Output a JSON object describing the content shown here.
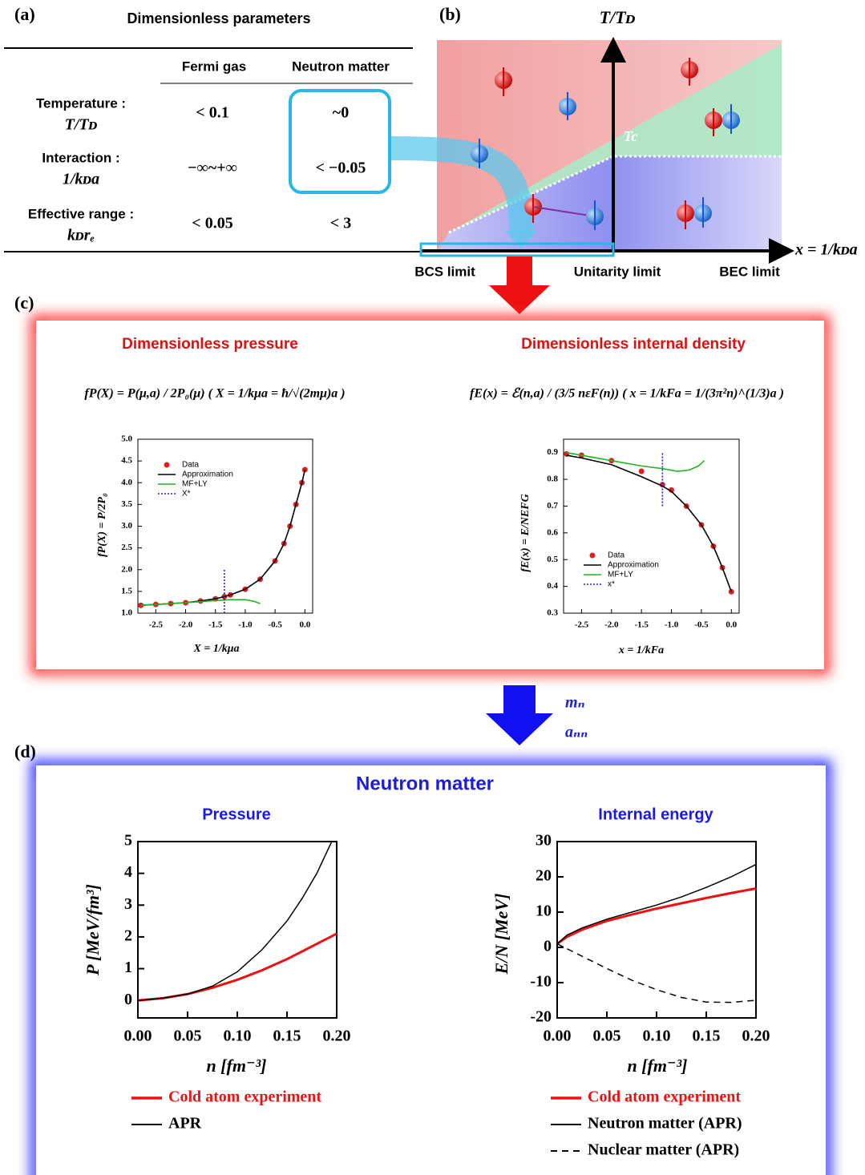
{
  "panel_labels": [
    "(a)",
    "(b)",
    "(c)",
    "(d)"
  ],
  "table": {
    "title": "Dimensionless parameters",
    "columns": [
      "Fermi gas",
      "Neutron matter"
    ],
    "rows": [
      {
        "label": "Temperature :",
        "symbol": "T/Tᴅ",
        "cells": [
          "< 0.1",
          "~0"
        ]
      },
      {
        "label": "Interaction :",
        "symbol": "1/kᴅa",
        "cells": [
          "−∞~+∞",
          "< −0.05"
        ]
      },
      {
        "label": "Effective range :",
        "symbol": "kᴅrₑ",
        "cells": [
          "< 0.05",
          "< 3"
        ]
      }
    ]
  },
  "diagram": {
    "y_axis": "T/Tᴅ",
    "x_axis": "x = 1/kᴅa",
    "tc_label": "Tc",
    "limits": [
      "BCS limit",
      "Unitarity limit",
      "BEC limit"
    ]
  },
  "arrow_labels": [
    "mₙ",
    "aₙₙ"
  ],
  "panel_d_title": "Neutron matter",
  "chart_data": [
    {
      "type": "line",
      "title": "Dimensionless pressure",
      "formula": "fP(X) = P(μ,a) / 2P₀(μ)    ( X = 1/kμa = ħ/√(2mμ)a )",
      "xlabel": "X = 1/kμa",
      "ylabel": "fP(X) = P/2P₀",
      "xlim": [
        -2.8,
        0.13
      ],
      "ylim": [
        1,
        5
      ],
      "xticks": [
        -2.5,
        {
          "value": -2,
          "label": "-2.0"
        },
        -1.5,
        {
          "value": -1,
          "label": "-1.0"
        },
        -0.5,
        {
          "value": 0,
          "label": "0.0"
        }
      ],
      "yticks": [
        {
          "value": 1,
          "label": "1.0"
        },
        1.5,
        {
          "value": 2,
          "label": "2.0"
        },
        2.5,
        {
          "value": 3,
          "label": "3.0"
        },
        3.5,
        {
          "value": 4,
          "label": "4.0"
        },
        4.5,
        {
          "value": 5,
          "label": "5.0"
        }
      ],
      "legend": "upper left",
      "series": [
        {
          "name": "Data",
          "color": "#e02020",
          "marker": "circle",
          "x": [
            -2.75,
            -2.5,
            -2.25,
            -2,
            -1.75,
            -1.5,
            -1.35,
            -1.25,
            -1,
            -0.75,
            -0.5,
            -0.35,
            -0.25,
            -0.15,
            -0.05,
            0
          ],
          "values": [
            1.18,
            1.2,
            1.22,
            1.24,
            1.28,
            1.33,
            1.38,
            1.42,
            1.55,
            1.78,
            2.2,
            2.6,
            3.0,
            3.5,
            4.0,
            4.3
          ]
        },
        {
          "name": "Approximation",
          "color": "#000000",
          "x": [
            -2.75,
            -2.5,
            -2.25,
            -2,
            -1.75,
            -1.5,
            -1.35,
            -1.25,
            -1,
            -0.75,
            -0.5,
            -0.35,
            -0.25,
            -0.15,
            -0.05,
            0
          ],
          "values": [
            1.18,
            1.2,
            1.22,
            1.24,
            1.28,
            1.33,
            1.38,
            1.42,
            1.55,
            1.78,
            2.2,
            2.6,
            3.0,
            3.5,
            4.0,
            4.3
          ]
        },
        {
          "name": "MF+LY",
          "color": "#22b422",
          "x": [
            -2.75,
            -2.5,
            -2,
            -1.5,
            -1.25,
            -1,
            -0.85,
            -0.75
          ],
          "values": [
            1.18,
            1.2,
            1.24,
            1.29,
            1.31,
            1.31,
            1.27,
            1.22
          ]
        },
        {
          "name": "X*",
          "color": "#2020d0",
          "dash": true,
          "x": [
            -1.35,
            -1.35
          ],
          "values": [
            1.0,
            2.0
          ]
        }
      ]
    },
    {
      "type": "line",
      "title": "Dimensionless internal density",
      "formula": "fE(x) = ℰ(n,a) / (3/5 nεF(n))    ( x = 1/kFa = 1/(3π²n)^(1/3)a )",
      "xlabel": "x = 1/kFa",
      "ylabel": "fE(x) = E/NEFG",
      "xlim": [
        -2.8,
        0.13
      ],
      "ylim": [
        0.3,
        0.95
      ],
      "xticks": [
        -2.5,
        {
          "value": -2,
          "label": "-2.0"
        },
        -1.5,
        {
          "value": -1,
          "label": "-1.0"
        },
        -0.5,
        {
          "value": 0,
          "label": "0.0"
        }
      ],
      "yticks": [
        0.3,
        0.4,
        0.5,
        0.6,
        0.7,
        0.8,
        0.9
      ],
      "legend": "lower left",
      "series": [
        {
          "name": "Data",
          "color": "#e02020",
          "marker": "circle",
          "x": [
            -2.75,
            -2.5,
            -2,
            -1.5,
            -1.15,
            -1,
            -0.75,
            -0.5,
            -0.3,
            -0.15,
            0
          ],
          "values": [
            0.895,
            0.89,
            0.87,
            0.83,
            0.78,
            0.76,
            0.7,
            0.63,
            0.55,
            0.47,
            0.38
          ]
        },
        {
          "name": "Approximation",
          "color": "#000000",
          "x": [
            -2.75,
            -2.5,
            -2,
            -1.5,
            -1.15,
            -1,
            -0.75,
            -0.5,
            -0.3,
            -0.15,
            0
          ],
          "values": [
            0.89,
            0.88,
            0.855,
            0.81,
            0.775,
            0.755,
            0.7,
            0.63,
            0.55,
            0.47,
            0.38
          ]
        },
        {
          "name": "MF+LY",
          "color": "#22b422",
          "x": [
            -2.75,
            -2.5,
            -2,
            -1.5,
            -1.15,
            -0.9,
            -0.7,
            -0.55,
            -0.45
          ],
          "values": [
            0.9,
            0.89,
            0.87,
            0.85,
            0.84,
            0.83,
            0.835,
            0.85,
            0.87
          ]
        },
        {
          "name": "x*",
          "color": "#2020d0",
          "dash": true,
          "x": [
            -1.15,
            -1.15
          ],
          "values": [
            0.7,
            0.9
          ]
        }
      ]
    },
    {
      "type": "line",
      "title": "Pressure",
      "xlabel": "n [fm⁻³]",
      "ylabel": "P [MeV/fm³]",
      "xlim": [
        0,
        0.2
      ],
      "ylim": [
        -0.55,
        5
      ],
      "xticks": [
        {
          "value": 0,
          "label": "0.00"
        },
        0.05,
        {
          "value": 0.1,
          "label": "0.10"
        },
        0.15,
        {
          "value": 0.2,
          "label": "0.20"
        }
      ],
      "yticks": [
        0,
        1,
        2,
        3,
        4,
        5
      ],
      "legend": "below",
      "series": [
        {
          "name": "Cold atom experiment",
          "color": "#ee1111",
          "width": 3,
          "x": [
            0,
            0.025,
            0.05,
            0.075,
            0.1,
            0.125,
            0.15,
            0.175,
            0.2
          ],
          "values": [
            0,
            0.07,
            0.2,
            0.4,
            0.65,
            0.95,
            1.3,
            1.7,
            2.1
          ]
        },
        {
          "name": "APR",
          "color": "#000000",
          "width": 1.5,
          "x": [
            0,
            0.025,
            0.05,
            0.075,
            0.1,
            0.125,
            0.15,
            0.165,
            0.18,
            0.195
          ],
          "values": [
            0,
            0.07,
            0.2,
            0.45,
            0.9,
            1.6,
            2.5,
            3.2,
            4.0,
            5.0
          ]
        }
      ]
    },
    {
      "type": "line",
      "title": "Internal energy",
      "xlabel": "n [fm⁻³]",
      "ylabel": "E/N [MeV]",
      "xlim": [
        0,
        0.2
      ],
      "ylim": [
        -20,
        30
      ],
      "xticks": [
        {
          "value": 0,
          "label": "0.00"
        },
        0.05,
        {
          "value": 0.1,
          "label": "0.10"
        },
        0.15,
        {
          "value": 0.2,
          "label": "0.20"
        }
      ],
      "yticks": [
        -20,
        -10,
        0,
        10,
        20,
        30
      ],
      "legend": "below",
      "series": [
        {
          "name": "Cold atom experiment",
          "color": "#ee1111",
          "width": 3,
          "x": [
            0,
            0.01,
            0.025,
            0.05,
            0.075,
            0.1,
            0.125,
            0.15,
            0.175,
            0.2
          ],
          "values": [
            1,
            3,
            5,
            7.5,
            9.3,
            11,
            12.5,
            14,
            15.4,
            16.7
          ]
        },
        {
          "name": "Neutron matter (APR)",
          "color": "#000000",
          "width": 1.5,
          "x": [
            0,
            0.01,
            0.025,
            0.05,
            0.075,
            0.1,
            0.125,
            0.15,
            0.175,
            0.2
          ],
          "values": [
            1,
            3.5,
            5.5,
            8,
            10,
            12,
            14.3,
            17,
            20,
            23.5
          ]
        },
        {
          "name": "Nuclear matter (APR)",
          "color": "#000000",
          "width": 1.5,
          "dash": true,
          "x": [
            0,
            0.025,
            0.05,
            0.075,
            0.1,
            0.125,
            0.15,
            0.175,
            0.2
          ],
          "values": [
            1,
            -2.5,
            -6,
            -9.3,
            -12,
            -14.2,
            -15.5,
            -15.6,
            -15
          ]
        }
      ]
    }
  ]
}
